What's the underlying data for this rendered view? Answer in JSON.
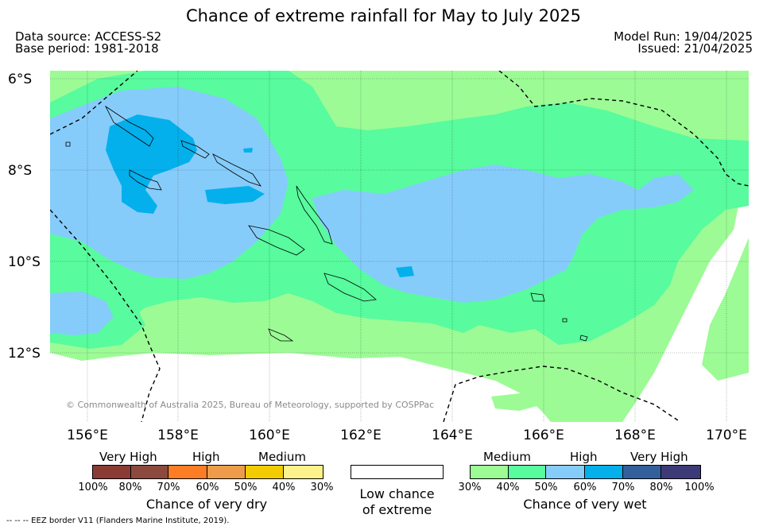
{
  "title": "Chance of extreme rainfall for May to July 2025",
  "data_source": "Data source: ACCESS-S2",
  "base_period": "Base period: 1981-2018",
  "model_run": "Model Run: 19/04/2025",
  "issued": "Issued: 21/04/2025",
  "latitudes": [
    "6°S",
    "8°S",
    "10°S",
    "12°S"
  ],
  "longitudes": [
    "156°E",
    "158°E",
    "160°E",
    "162°E",
    "164°E",
    "166°E",
    "168°E",
    "170°E"
  ],
  "copyright": "© Commonwealth of Australia 2025, Bureau of Meteorology, supported by COSPPac",
  "legend": {
    "dry": {
      "headers": [
        "Very High",
        "High",
        "Medium"
      ],
      "colors": [
        "#8b3a34",
        "#8c4a3e",
        "#fc7d24",
        "#ee9c4a",
        "#f2cc00",
        "#fdf28c"
      ],
      "ticks": [
        "100%",
        "80%",
        "70%",
        "60%",
        "50%",
        "40%",
        "30%"
      ],
      "caption": "Chance of very dry"
    },
    "low": {
      "color": "#ffffff",
      "caption_line1": "Low chance",
      "caption_line2": "of extreme"
    },
    "wet": {
      "headers": [
        "Medium",
        "High",
        "Very High"
      ],
      "colors": [
        "#9cfb95",
        "#58fb9e",
        "#86ccfb",
        "#03b0ec",
        "#345f9d",
        "#3d3a78"
      ],
      "ticks": [
        "30%",
        "40%",
        "50%",
        "60%",
        "70%",
        "80%",
        "100%"
      ],
      "caption": "Chance of very wet"
    }
  },
  "footnote": "--  --  -- EEZ border V11 (Flanders Marine Institute, 2019)."
}
